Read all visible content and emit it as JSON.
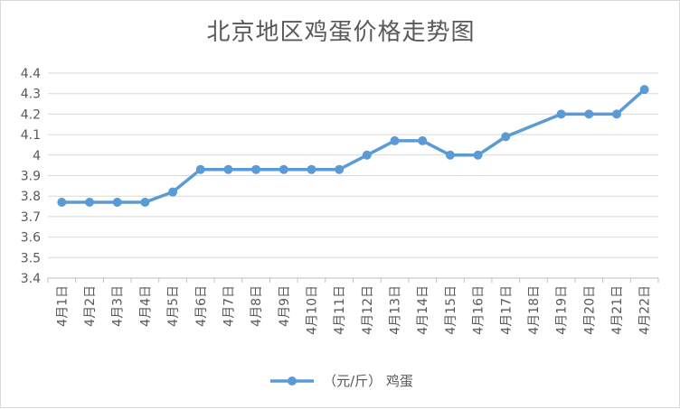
{
  "chart_data": {
    "type": "line",
    "title": "北京地区鸡蛋价格走势图",
    "categories": [
      "4月1日",
      "4月2日",
      "4月3日",
      "4月4日",
      "4月5日",
      "4月6日",
      "4月7日",
      "4月8日",
      "4月9日",
      "4月10日",
      "4月11日",
      "4月12日",
      "4月13日",
      "4月14日",
      "4月15日",
      "4月16日",
      "4月17日",
      "4月18日",
      "4月19日",
      "4月20日",
      "4月21日",
      "4月22日"
    ],
    "series": [
      {
        "name": "（元/斤） 鸡蛋",
        "values": [
          3.77,
          3.77,
          3.77,
          3.77,
          3.82,
          3.93,
          3.93,
          3.93,
          3.93,
          3.93,
          3.93,
          4.0,
          4.07,
          4.07,
          4.0,
          4.0,
          4.09,
          null,
          4.2,
          4.2,
          4.2,
          4.32
        ],
        "color": "#5b9bd5"
      }
    ],
    "yticks": [
      "3.4",
      "3.5",
      "3.6",
      "3.7",
      "3.8",
      "3.9",
      "4",
      "4.1",
      "4.2",
      "4.3",
      "4.4"
    ],
    "ylim": [
      3.4,
      4.4
    ],
    "grid": true,
    "legend_position": "bottom"
  }
}
